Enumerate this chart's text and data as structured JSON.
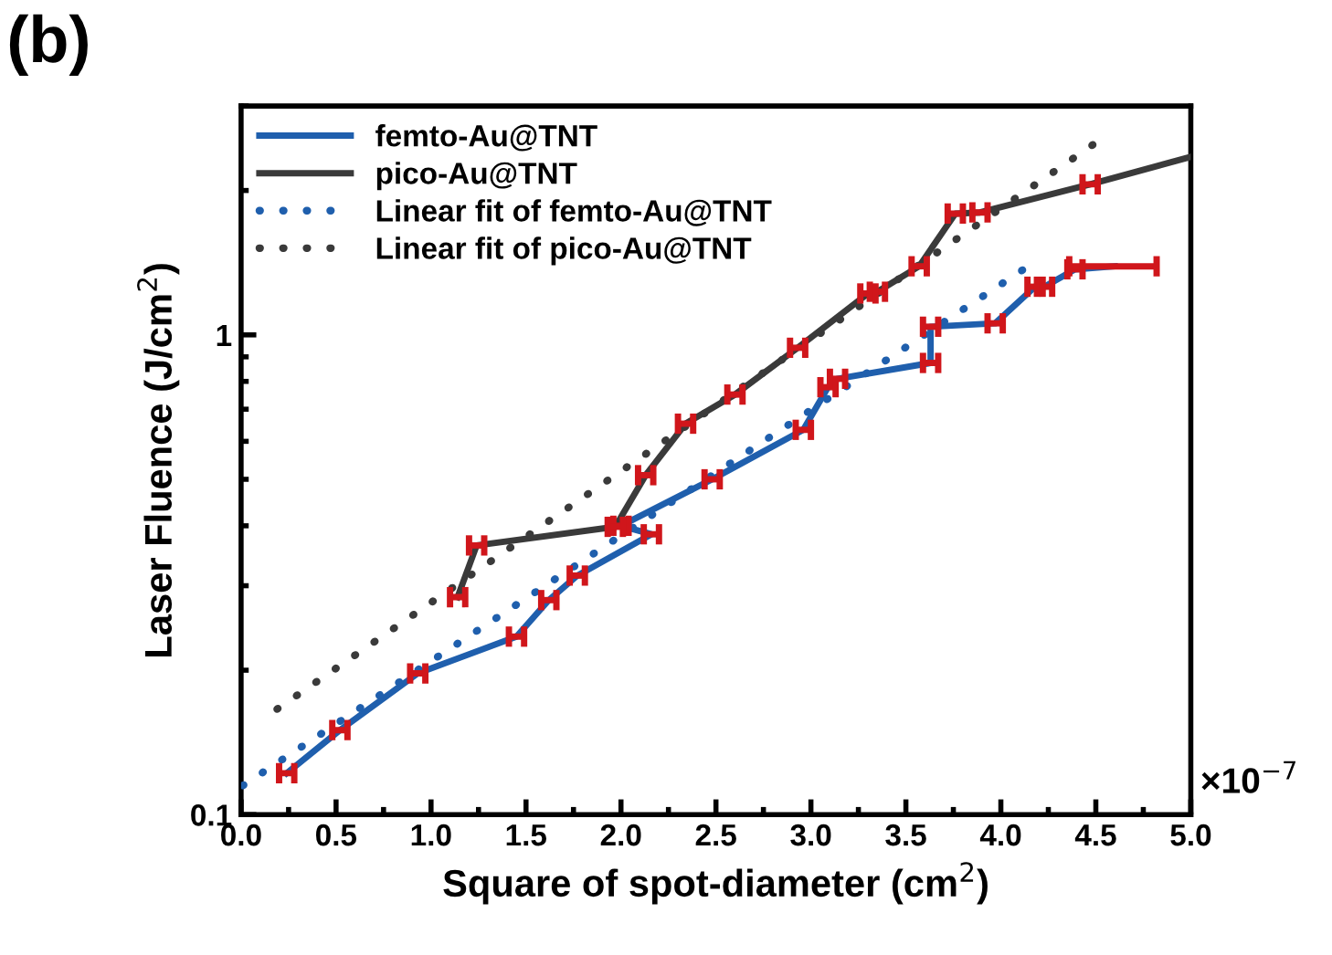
{
  "chart_data": {
    "type": "line",
    "title": "(b)",
    "xlabel": "Square of spot-diameter (cm$^{2}$)",
    "ylabel": "Laser Fluence (J/cm$^{2}$)",
    "annotations": [
      "×10$^{−7}$"
    ],
    "xlim": [
      0,
      5
    ],
    "xticks": [
      {
        "value": 0,
        "label": "0.0"
      },
      0.5,
      {
        "value": 1,
        "label": "1.0"
      },
      1.5,
      {
        "value": 2,
        "label": "2.0"
      },
      2.5,
      {
        "value": 3,
        "label": "3.0"
      },
      3.5,
      {
        "value": 4,
        "label": "4.0"
      },
      4.5,
      {
        "value": 5,
        "label": "5.0"
      }
    ],
    "ylim": [
      0.1,
      3
    ],
    "yticks": [
      0.1,
      1
    ],
    "log": "y",
    "grid": false,
    "legend": "top left",
    "line_style": "solid",
    "marker": "none",
    "series": [
      {
        "name": "femto-Au@TNT",
        "color": "#1f5fad",
        "x": [
          0.24,
          0.52,
          0.93,
          1.45,
          1.62,
          1.77,
          2.16,
          2.0,
          2.48,
          2.96,
          3.09,
          3.14,
          3.63,
          3.63,
          3.97,
          4.18,
          4.23,
          4.39,
          4.6
        ],
        "values": [
          0.122,
          0.15,
          0.197,
          0.235,
          0.28,
          0.315,
          0.384,
          0.4,
          0.5,
          0.634,
          0.778,
          0.81,
          0.874,
          1.04,
          1.057,
          1.26,
          1.26,
          1.37,
          1.39
        ],
        "xerrors": [
          0.04,
          0.04,
          0.04,
          0.04,
          0.04,
          0.04,
          0.04,
          0.04,
          0.04,
          0.04,
          0.04,
          0.04,
          0.04,
          0.04,
          0.04,
          0.04,
          0.04,
          0.04,
          [
            4.36,
            4.82
          ]
        ]
      },
      {
        "name": "pico-Au@TNT",
        "color": "#3a3a3a",
        "x": [
          1.14,
          1.24,
          1.97,
          2.13,
          2.34,
          2.6,
          2.93,
          3.3,
          3.35,
          3.57,
          3.76,
          3.89,
          4.47,
          5.0
        ],
        "values": [
          0.284,
          0.364,
          0.398,
          0.51,
          0.653,
          0.751,
          0.94,
          1.22,
          1.23,
          1.39,
          1.79,
          1.8,
          2.06,
          2.35
        ],
        "xerrors": [
          0.04,
          0.04,
          0.04,
          0.04,
          0.04,
          0.04,
          0.04,
          0.04,
          0.04,
          0.04,
          0.04,
          0.04,
          0.04,
          null
        ]
      },
      {
        "name": "Linear fit of femto-Au@TNT",
        "color": "#1f5fad",
        "line_style": "dotted",
        "x": [
          0.01,
          4.12
        ],
        "values": [
          0.115,
          1.37
        ]
      },
      {
        "name": "Linear fit of pico-Au@TNT",
        "color": "#3a3a3a",
        "line_style": "dotted",
        "x": [
          0.19,
          4.49
        ],
        "values": [
          0.166,
          2.5
        ]
      }
    ]
  }
}
